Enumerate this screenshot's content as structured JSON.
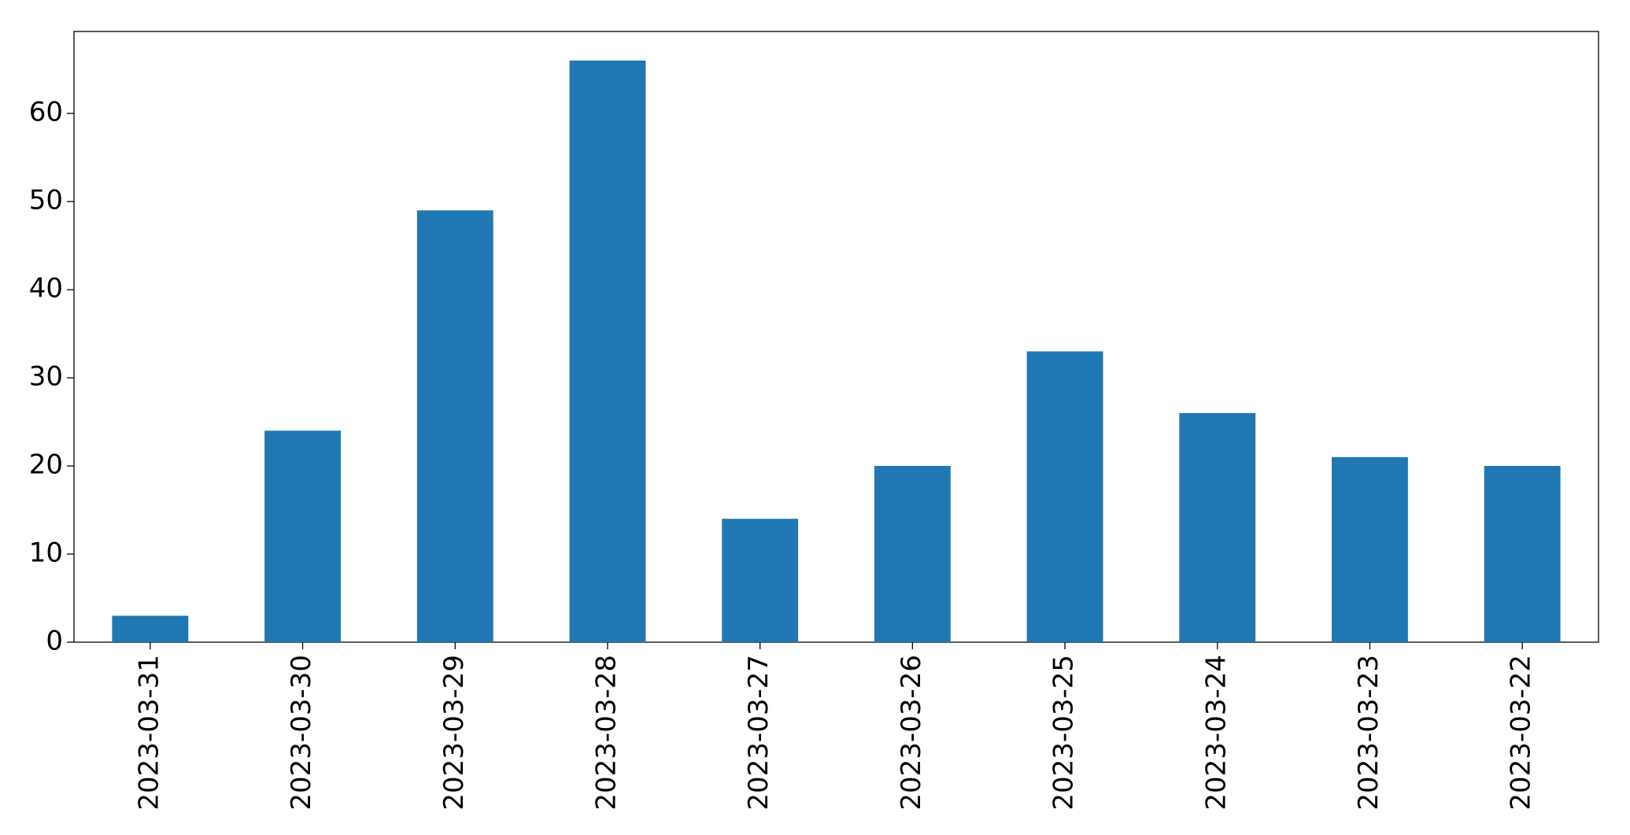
{
  "chart_data": {
    "type": "bar",
    "categories": [
      "2023-03-31",
      "2023-03-30",
      "2023-03-29",
      "2023-03-28",
      "2023-03-27",
      "2023-03-26",
      "2023-03-25",
      "2023-03-24",
      "2023-03-23",
      "2023-03-22"
    ],
    "values": [
      3,
      24,
      49,
      66,
      14,
      20,
      33,
      26,
      21,
      20
    ],
    "color": "#1f77b4",
    "ylim": [
      0,
      69.3
    ],
    "yticks": [
      0,
      10,
      20,
      30,
      40,
      50,
      60
    ],
    "grid": false
  }
}
